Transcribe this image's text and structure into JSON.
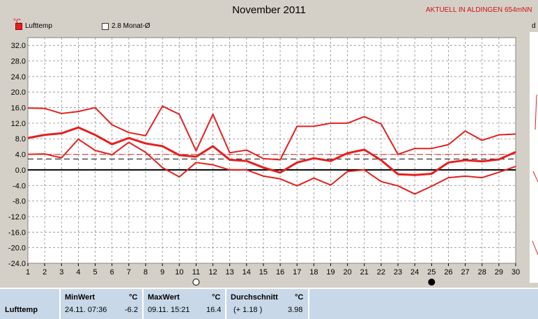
{
  "header": {
    "title": "November 2011",
    "headline": "AKTUELL IN ALDINGEN 654mNN",
    "unit_label": "°C",
    "right_cut_label": "d"
  },
  "legend": {
    "series_label": "Lufttemp",
    "mean_label": "2.8 Monat-Ø"
  },
  "colors": {
    "series": "#e42020",
    "background": "#d4d0c8",
    "plot": "#ffffff",
    "accent_text": "#d01010"
  },
  "chart_data": {
    "type": "line",
    "title": "November 2011",
    "ylabel": "°C",
    "xlim": [
      1,
      30
    ],
    "ylim": [
      -24,
      34
    ],
    "yticks": [
      "32.0",
      "28.0",
      "24.0",
      "20.0",
      "16.0",
      "12.0",
      "8.0",
      "4.0",
      "0.0",
      "-4.0",
      "-8.0",
      "-12.0",
      "-16.0",
      "-20.0",
      "-24.0"
    ],
    "xticks": [
      "1",
      "2",
      "3",
      "4",
      "5",
      "6",
      "7",
      "8",
      "9",
      "10",
      "11",
      "12",
      "13",
      "14",
      "15",
      "16",
      "17",
      "18",
      "19",
      "20",
      "21",
      "22",
      "23",
      "24",
      "25",
      "26",
      "27",
      "28",
      "29",
      "30"
    ],
    "grid": true,
    "legend": "top-left",
    "x": [
      1,
      2,
      3,
      4,
      5,
      6,
      7,
      8,
      9,
      10,
      11,
      12,
      13,
      14,
      15,
      16,
      17,
      18,
      19,
      20,
      21,
      22,
      23,
      24,
      25,
      26,
      27,
      28,
      29,
      30
    ],
    "series": [
      {
        "name": "",
        "role": "max",
        "values": [
          15.9,
          15.8,
          14.5,
          15.0,
          16.0,
          11.6,
          9.6,
          8.8,
          16.4,
          14.3,
          4.9,
          14.3,
          4.4,
          5.1,
          2.9,
          2.6,
          11.2,
          11.2,
          12.0,
          12.0,
          13.7,
          11.8,
          4.0,
          5.5,
          5.5,
          6.5,
          10.0,
          7.6,
          9.0,
          9.2
        ]
      },
      {
        "name": "",
        "role": "mean",
        "values": [
          8.2,
          9.0,
          9.4,
          10.9,
          9.0,
          6.6,
          8.2,
          6.8,
          6.1,
          3.8,
          3.4,
          6.1,
          2.6,
          2.3,
          0.6,
          -0.7,
          1.9,
          3.0,
          2.3,
          4.3,
          5.2,
          2.5,
          -1.1,
          -1.3,
          -1.0,
          1.9,
          2.5,
          2.2,
          2.7,
          4.6
        ]
      },
      {
        "name": "",
        "role": "min",
        "values": [
          4.0,
          4.1,
          3.1,
          7.9,
          5.0,
          3.9,
          7.1,
          4.5,
          0.6,
          -1.8,
          1.9,
          1.3,
          0.0,
          0.0,
          -1.6,
          -2.3,
          -4.1,
          -2.1,
          -3.9,
          -0.4,
          0.0,
          -3.0,
          -4.1,
          -6.2,
          -4.2,
          -2.0,
          -1.6,
          -2.0,
          -0.6,
          0.9
        ]
      }
    ],
    "reference_lines": [
      {
        "label": "2.8 Monat-Ø",
        "value": 2.8,
        "style": "dashed"
      },
      {
        "value": 3.98,
        "style": "dashed",
        "color": "#e42020"
      }
    ],
    "moon_phases": [
      {
        "day": 11,
        "phase": "full moon"
      },
      {
        "day": 25,
        "phase": "new moon"
      }
    ]
  },
  "stats": {
    "row_label": "Lufttemp",
    "min_header": "MinWert",
    "min_unit": "°C",
    "min_time": "24.11.  07:36",
    "min_value": "-6.2",
    "max_header": "MaxWert",
    "max_unit": "°C",
    "max_time": "09.11.  15:21",
    "max_value": "16.4",
    "avg_header": "Durchschnitt",
    "avg_unit": "°C",
    "avg_diff": "(+ 1.18 )",
    "avg_value": "3.98"
  }
}
